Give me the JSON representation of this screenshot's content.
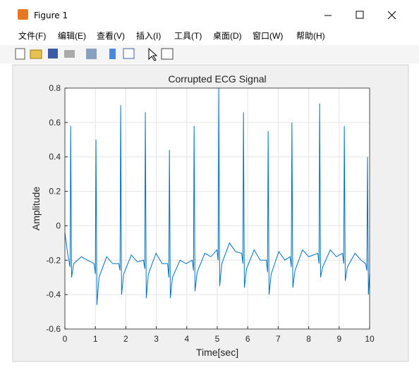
{
  "window": {
    "title": "Figure 1",
    "menu": [
      "文件(F)",
      "编辑(E)",
      "查看(V)",
      "插入(I)",
      "工具(T)",
      "桌面(D)",
      "窗口(W)",
      "帮助(H)"
    ]
  },
  "chart_data": {
    "type": "line",
    "title": "Corrupted ECG Signal",
    "x_label": "Time[sec]",
    "y_label": "Amplitude",
    "color": "#0072bd",
    "grid": true,
    "x": [
      0,
      0.08,
      0.13,
      0.17,
      0.19,
      0.22,
      0.29,
      0.54,
      0.74,
      0.96,
      1.0,
      1.02,
      1.05,
      1.12,
      1.37,
      1.57,
      1.77,
      1.81,
      1.83,
      1.86,
      1.93,
      2.18,
      2.38,
      2.58,
      2.62,
      2.64,
      2.67,
      2.74,
      2.99,
      3.19,
      3.37,
      3.41,
      3.43,
      3.46,
      3.53,
      3.78,
      3.98,
      4.18,
      4.22,
      4.24,
      4.27,
      4.34,
      4.59,
      4.79,
      4.99,
      5.03,
      5.05,
      5.08,
      5.15,
      5.4,
      5.6,
      5.8,
      5.84,
      5.86,
      5.89,
      5.96,
      6.21,
      6.41,
      6.61,
      6.65,
      6.67,
      6.7,
      6.77,
      7.02,
      7.22,
      7.39,
      7.43,
      7.45,
      7.48,
      7.55,
      7.8,
      8.0,
      8.3,
      8.34,
      8.36,
      8.39,
      8.46,
      8.71,
      8.91,
      9.11,
      9.15,
      9.17,
      9.2,
      9.27,
      9.52,
      9.72,
      9.87,
      9.91,
      9.93,
      9.96,
      10
    ],
    "values": [
      -0.04,
      -0.15,
      -0.2,
      -0.24,
      0.58,
      -0.3,
      -0.22,
      -0.18,
      -0.2,
      -0.22,
      -0.28,
      0.5,
      -0.46,
      -0.3,
      -0.18,
      -0.22,
      -0.22,
      -0.26,
      0.7,
      -0.4,
      -0.28,
      -0.17,
      -0.21,
      -0.2,
      -0.25,
      0.66,
      -0.42,
      -0.28,
      -0.16,
      -0.22,
      -0.22,
      -0.3,
      0.44,
      -0.42,
      -0.3,
      -0.2,
      -0.22,
      -0.2,
      -0.26,
      0.58,
      -0.38,
      -0.27,
      -0.16,
      -0.18,
      -0.14,
      -0.2,
      0.8,
      -0.35,
      -0.22,
      -0.1,
      -0.15,
      -0.16,
      -0.22,
      0.66,
      -0.36,
      -0.25,
      -0.14,
      -0.2,
      -0.2,
      -0.27,
      0.55,
      -0.4,
      -0.28,
      -0.15,
      -0.2,
      -0.18,
      -0.24,
      0.6,
      -0.36,
      -0.26,
      -0.14,
      -0.18,
      -0.16,
      -0.22,
      0.71,
      -0.3,
      -0.24,
      -0.14,
      -0.18,
      -0.16,
      -0.22,
      0.58,
      -0.32,
      -0.24,
      -0.16,
      -0.2,
      -0.22,
      -0.26,
      0.4,
      -0.4,
      -0.28
    ],
    "xlim": [
      0,
      10
    ],
    "xticks": [
      0,
      1,
      2,
      3,
      4,
      5,
      6,
      7,
      8,
      9,
      10
    ],
    "ylim": [
      -0.6,
      0.8
    ],
    "yticks": [
      -0.6,
      -0.4,
      -0.2,
      0,
      0.2,
      0.4,
      0.6,
      0.8
    ]
  }
}
